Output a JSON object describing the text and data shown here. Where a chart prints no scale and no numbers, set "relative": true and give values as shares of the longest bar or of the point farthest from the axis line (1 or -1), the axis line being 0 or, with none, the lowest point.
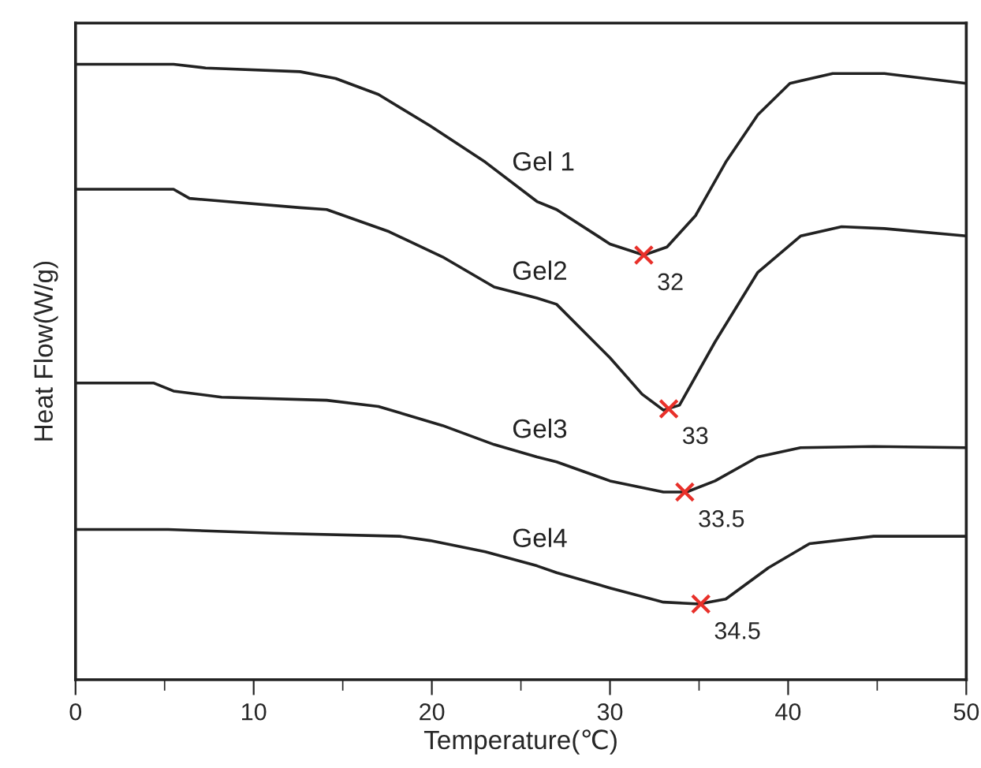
{
  "chart_data": {
    "type": "line",
    "relative": true,
    "xlabel": "Temperature(℃)",
    "ylabel": "Heat Flow(W/g)",
    "xlim": [
      0,
      50
    ],
    "xticks": [
      0,
      10,
      20,
      30,
      40,
      50
    ],
    "grid": false,
    "legend": false,
    "marker": "none",
    "line_style": "solid",
    "series": [
      {
        "name": "Gel 1",
        "color": "#222222",
        "x": [
          0,
          5.5,
          7.3,
          12.6,
          14.6,
          17.0,
          19.9,
          23.0,
          25.9,
          27.0,
          30.0,
          31.9,
          33.2,
          34.8,
          36.5,
          38.3,
          40.1,
          42.5,
          45.4,
          50
        ],
        "values": [
          1.0,
          1.0,
          0.994,
          0.988,
          0.977,
          0.951,
          0.9,
          0.841,
          0.777,
          0.764,
          0.708,
          0.69,
          0.703,
          0.754,
          0.841,
          0.918,
          0.969,
          0.985,
          0.985,
          0.969
        ]
      },
      {
        "name": "Gel2",
        "color": "#222222",
        "x": [
          0,
          5.5,
          6.4,
          12.6,
          14.1,
          17.6,
          20.6,
          23.5,
          25.9,
          27.0,
          30.0,
          31.8,
          33.0,
          33.9,
          35.9,
          38.3,
          40.7,
          43.0,
          45.4,
          50
        ],
        "values": [
          0.797,
          0.797,
          0.782,
          0.767,
          0.764,
          0.728,
          0.687,
          0.638,
          0.62,
          0.61,
          0.523,
          0.464,
          0.438,
          0.446,
          0.549,
          0.662,
          0.721,
          0.736,
          0.733,
          0.721
        ]
      },
      {
        "name": "Gel3",
        "color": "#222222",
        "x": [
          0,
          4.4,
          5.5,
          8.2,
          14.1,
          17.0,
          20.6,
          23.5,
          25.9,
          27.0,
          30.0,
          33.0,
          34.3,
          35.9,
          38.3,
          40.7,
          44.8,
          50
        ],
        "values": [
          0.482,
          0.482,
          0.469,
          0.459,
          0.454,
          0.444,
          0.413,
          0.382,
          0.362,
          0.354,
          0.323,
          0.305,
          0.305,
          0.323,
          0.362,
          0.377,
          0.379,
          0.377
        ]
      },
      {
        "name": "Gel4",
        "color": "#222222",
        "x": [
          0,
          5.2,
          11.1,
          18.2,
          19.9,
          23.0,
          25.9,
          27.0,
          30.0,
          33.0,
          35.0,
          36.5,
          38.9,
          41.2,
          44.8,
          50
        ],
        "values": [
          0.244,
          0.244,
          0.238,
          0.233,
          0.226,
          0.208,
          0.185,
          0.174,
          0.149,
          0.126,
          0.123,
          0.131,
          0.182,
          0.221,
          0.233,
          0.233
        ]
      },
      {
        "type": "scatter",
        "marker": "cross",
        "color": "#e8302a",
        "x": [
          31.9,
          33.3,
          34.2,
          35.1
        ],
        "values": [
          0.69,
          0.44,
          0.305,
          0.123
        ]
      }
    ],
    "annotations": [
      {
        "text": "32",
        "x": 31.9,
        "y": 0.69
      },
      {
        "text": "33",
        "x": 33.3,
        "y": 0.44
      },
      {
        "text": "33.5",
        "x": 34.2,
        "y": 0.305
      },
      {
        "text": "34.5",
        "x": 35.1,
        "y": 0.123
      }
    ]
  }
}
